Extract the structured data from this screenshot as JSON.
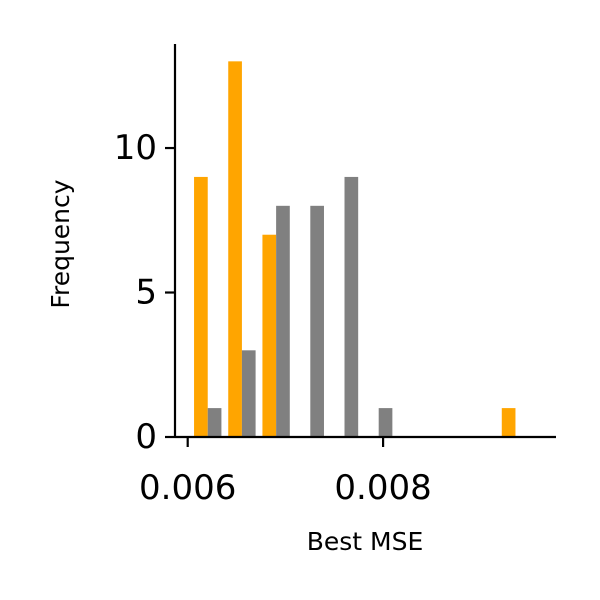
{
  "chart_data": {
    "type": "bar",
    "title": "",
    "xlabel": "Best MSE",
    "ylabel": "Frequency",
    "xlim": [
      0.00587,
      0.00977
    ],
    "ylim": [
      0,
      13.6
    ],
    "grid": false,
    "legend": "none",
    "x_ticks": [
      {
        "value": 0.006,
        "label": "0.006"
      },
      {
        "value": 0.008,
        "label": "0.008"
      }
    ],
    "y_ticks": [
      {
        "value": 0,
        "label": "0"
      },
      {
        "value": 5,
        "label": "5"
      },
      {
        "value": 10,
        "label": "10"
      }
    ],
    "bin_edges": [
      0.00603,
      0.00638,
      0.00673,
      0.00708,
      0.00743,
      0.00778,
      0.00813,
      0.00848,
      0.00883,
      0.00918,
      0.00953
    ],
    "series": [
      {
        "color": "#FFA500",
        "values": [
          9,
          13,
          7,
          0,
          0,
          0,
          0,
          0,
          0,
          1
        ]
      },
      {
        "color": "#808080",
        "values": [
          1,
          3,
          8,
          8,
          9,
          1,
          0,
          0,
          0,
          0
        ]
      }
    ]
  }
}
